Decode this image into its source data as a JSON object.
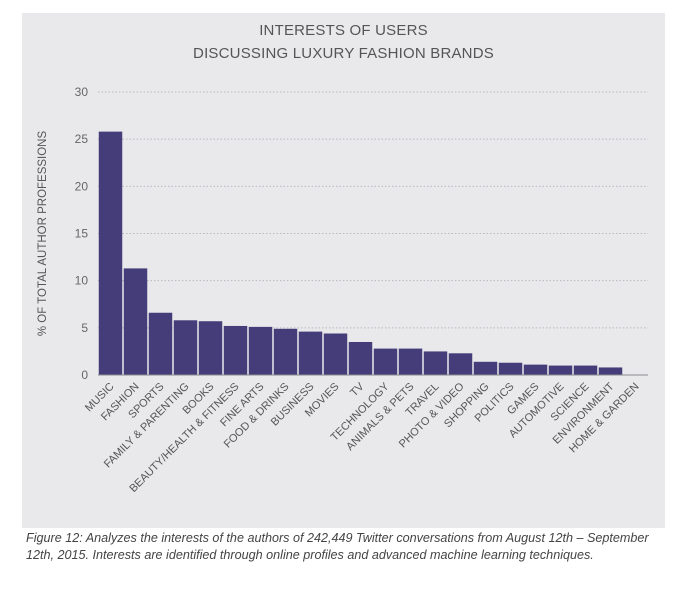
{
  "chart_data": {
    "type": "bar",
    "title_lines": [
      "INTERESTS OF USERS",
      "DISCUSSING LUXURY FASHION BRANDS"
    ],
    "ylabel": "% OF TOTAL AUTHOR PROFESSIONS",
    "xlabel": "",
    "ylim": [
      0,
      30
    ],
    "yticks": [
      0,
      5,
      10,
      15,
      20,
      25,
      30
    ],
    "grid": true,
    "categories": [
      "MUSIC",
      "FASHION",
      "SPORTS",
      "FAMILY & PARENTING",
      "BOOKS",
      "BEAUTY/HEALTH & FITNESS",
      "FINE ARTS",
      "FOOD & DRINKS",
      "BUSINESS",
      "MOVIES",
      "TV",
      "TECHNOLOGY",
      "ANIMALS & PETS",
      "TRAVEL",
      "PHOTO & VIDEO",
      "SHOPPING",
      "POLITICS",
      "GAMES",
      "AUTOMOTIVE",
      "SCIENCE",
      "ENVIRONMENT",
      "HOME & GARDEN"
    ],
    "values": [
      25.8,
      11.3,
      6.6,
      5.8,
      5.7,
      5.2,
      5.1,
      4.9,
      4.6,
      4.4,
      3.5,
      2.8,
      2.8,
      2.5,
      2.3,
      1.4,
      1.3,
      1.1,
      1.0,
      1.0,
      0.8,
      0.0
    ],
    "bar_color": "#453d79",
    "grid_color": "#b9b9be"
  },
  "caption": "Figure 12: Analyzes the interests of the authors of 242,449 Twitter conversations from August 12th – September 12th, 2015. Interests are identified through online profiles and advanced machine learning techniques."
}
